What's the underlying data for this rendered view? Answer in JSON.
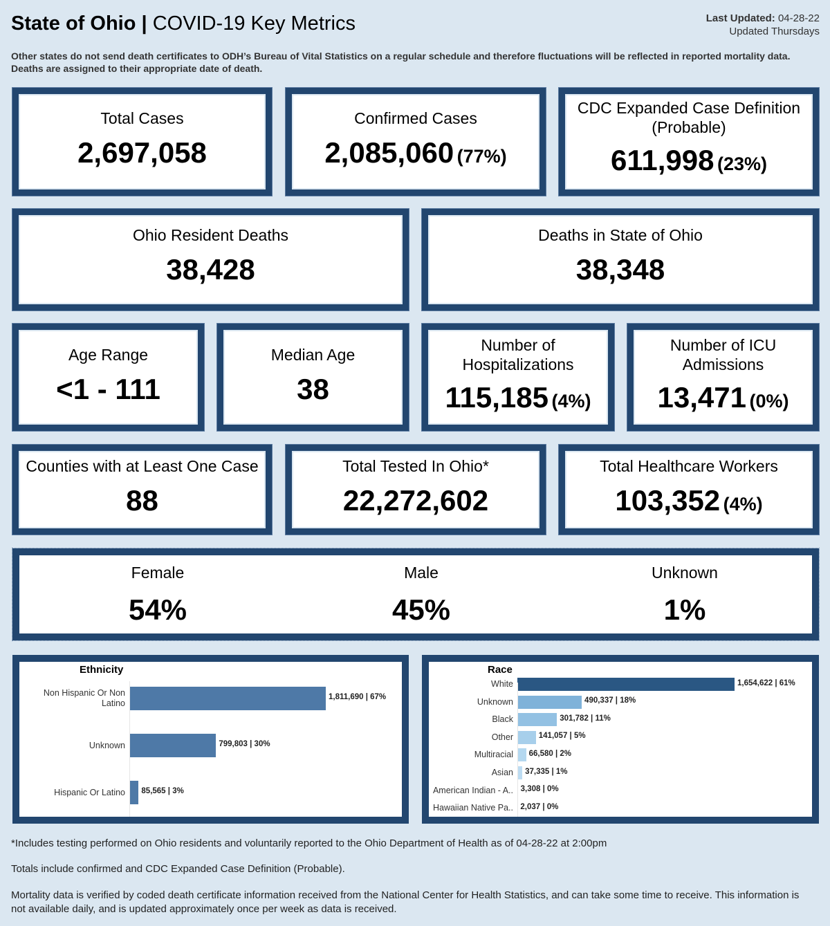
{
  "header": {
    "title_bold": "State of Ohio",
    "title_sep": " | ",
    "title_rest": "COVID-19 Key Metrics",
    "last_updated_label": "Last Updated:",
    "last_updated_value": " 04-28-22",
    "update_schedule": "Updated Thursdays",
    "note": "Other states do not send death certificates to ODH’s Bureau of Vital Statistics on a regular schedule and therefore fluctuations will be reflected in reported mortality data. Deaths are assigned to their appropriate date of death."
  },
  "metrics": {
    "total_cases": {
      "label": "Total Cases",
      "value": "2,697,058"
    },
    "confirmed_cases": {
      "label": "Confirmed Cases",
      "value": "2,085,060",
      "pct": "(77%)"
    },
    "probable_cases": {
      "label": "CDC Expanded Case Definition (Probable)",
      "value": "611,998",
      "pct": "(23%)"
    },
    "resident_deaths": {
      "label": "Ohio Resident Deaths",
      "value": "38,428"
    },
    "state_deaths": {
      "label": "Deaths in State of Ohio",
      "value": "38,348"
    },
    "age_range": {
      "label": "Age Range",
      "value": "<1 - 111"
    },
    "median_age": {
      "label": "Median Age",
      "value": "38"
    },
    "hospitalizations": {
      "label": "Number of Hospitalizations",
      "value": "115,185",
      "pct": "(4%)"
    },
    "icu": {
      "label": "Number of ICU Admissions",
      "value": "13,471",
      "pct": "(0%)"
    },
    "counties": {
      "label": "Counties with at Least One Case",
      "value": "88"
    },
    "tested": {
      "label": "Total Tested In Ohio*",
      "value": "22,272,602"
    },
    "healthcare_workers": {
      "label": "Total Healthcare Workers",
      "value": "103,352",
      "pct": "(4%)"
    }
  },
  "gender": [
    {
      "label": "Female",
      "value": "54%"
    },
    {
      "label": "Male",
      "value": "45%"
    },
    {
      "label": "Unknown",
      "value": "1%"
    }
  ],
  "chart_data": [
    {
      "type": "bar",
      "orientation": "horizontal",
      "title": "Ethnicity",
      "categories": [
        "Non Hispanic Or Non Latino",
        "Unknown",
        "Hispanic Or Latino"
      ],
      "values": [
        1811690,
        799803,
        85565
      ],
      "labels": [
        "1,811,690 | 67%",
        "799,803 | 30%",
        "85,565 | 3%"
      ],
      "colors": [
        "#4e79a7",
        "#4e79a7",
        "#4e79a7"
      ]
    },
    {
      "type": "bar",
      "orientation": "horizontal",
      "title": "Race",
      "categories": [
        "White",
        "Unknown",
        "Black",
        "Other",
        "Multiracial",
        "Asian",
        "American Indian - A..",
        "Hawaiian Native Pa.."
      ],
      "values": [
        1654622,
        490337,
        301782,
        141057,
        66580,
        37335,
        3308,
        2037
      ],
      "labels": [
        "1,654,622 | 61%",
        "490,337 | 18%",
        "301,782 | 11%",
        "141,057 | 5%",
        "66,580 | 2%",
        "37,335 | 1%",
        "3,308 | 0%",
        "2,037 | 0%"
      ],
      "colors": [
        "#2a5783",
        "#7fb2d9",
        "#93c1e3",
        "#a7cfeb",
        "#b4d8f0",
        "#bddcf2",
        "#c5e1f4",
        "#c5e1f4"
      ]
    }
  ],
  "footer": {
    "testing_note": "*Includes testing performed on Ohio residents and voluntarily reported to the Ohio Department of Health as of 04-28-22 at 2:00pm",
    "totals_note": "Totals include confirmed and CDC Expanded Case Definition (Probable).",
    "mortality_note": "Mortality data is verified by coded death certificate information received from the National Center for Health Statistics, and can take some time to receive. This information is not available daily, and is updated approximately once per week as data is received."
  }
}
